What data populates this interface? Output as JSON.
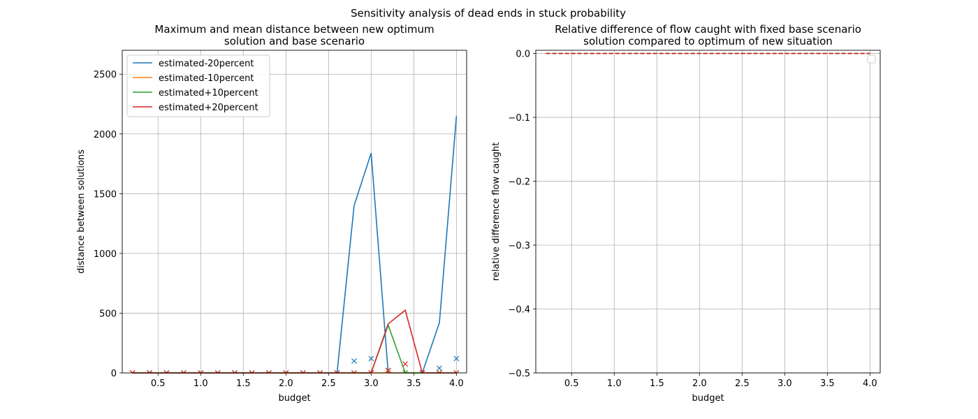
{
  "suptitle": "Sensitivity analysis of dead ends in stuck probability",
  "colors": {
    "estimated-20percent": "#1f77b4",
    "estimated-10percent": "#ff7f0e",
    "estimated+10percent": "#2ca02c",
    "estimated+20percent": "#d62728",
    "grid": "#b0b0b0"
  },
  "chart_data": [
    {
      "type": "line",
      "title_lines": [
        "Maximum and mean distance between new optimum",
        "solution and base scenario"
      ],
      "xlabel": "budget",
      "ylabel": "distance between solutions",
      "xlim": [
        0.08,
        4.12
      ],
      "ylim": [
        0,
        2700
      ],
      "xticks": [
        0.5,
        1.0,
        1.5,
        2.0,
        2.5,
        3.0,
        3.5,
        4.0
      ],
      "xtick_labels": [
        "0.5",
        "1.0",
        "1.5",
        "2.0",
        "2.5",
        "3.0",
        "3.5",
        "4.0"
      ],
      "yticks": [
        0,
        500,
        1000,
        1500,
        2000,
        2500
      ],
      "ytick_labels": [
        "0",
        "500",
        "1000",
        "1500",
        "2000",
        "2500"
      ],
      "grid": true,
      "legend_position": "upper-left",
      "x": [
        0.2,
        0.4,
        0.6,
        0.8,
        1.0,
        1.2,
        1.4,
        1.6,
        1.8,
        2.0,
        2.2,
        2.4,
        2.6,
        2.8,
        3.0,
        3.2,
        3.4,
        3.6,
        3.8,
        4.0
      ],
      "series": [
        {
          "name": "estimated-20percent",
          "color_key": "estimated-20percent",
          "max": [
            0,
            0,
            0,
            0,
            0,
            0,
            0,
            0,
            0,
            0,
            0,
            0,
            0,
            1400,
            1840,
            0,
            0,
            0,
            420,
            2150
          ],
          "mean": [
            0,
            0,
            0,
            0,
            0,
            0,
            0,
            0,
            0,
            0,
            0,
            0,
            0,
            100,
            120,
            20,
            0,
            0,
            40,
            120
          ]
        },
        {
          "name": "estimated-10percent",
          "color_key": "estimated-10percent",
          "max": [
            0,
            0,
            0,
            0,
            0,
            0,
            0,
            0,
            0,
            0,
            0,
            0,
            0,
            0,
            0,
            0,
            0,
            0,
            0,
            0
          ],
          "mean": [
            0,
            0,
            0,
            0,
            0,
            0,
            0,
            0,
            0,
            0,
            0,
            0,
            0,
            0,
            0,
            0,
            0,
            0,
            0,
            0
          ]
        },
        {
          "name": "estimated+10percent",
          "color_key": "estimated+10percent",
          "max": [
            0,
            0,
            0,
            0,
            0,
            0,
            0,
            0,
            0,
            0,
            0,
            0,
            0,
            0,
            0,
            400,
            0,
            0,
            0,
            0
          ],
          "mean": [
            0,
            0,
            0,
            0,
            0,
            0,
            0,
            0,
            0,
            0,
            0,
            0,
            0,
            0,
            0,
            20,
            0,
            0,
            0,
            0
          ]
        },
        {
          "name": "estimated+20percent",
          "color_key": "estimated+20percent",
          "max": [
            0,
            0,
            0,
            0,
            0,
            0,
            0,
            0,
            0,
            0,
            0,
            0,
            0,
            0,
            0,
            410,
            525,
            0,
            0,
            0
          ],
          "mean": [
            0,
            0,
            0,
            0,
            0,
            0,
            0,
            0,
            0,
            0,
            0,
            0,
            0,
            0,
            0,
            20,
            75,
            0,
            0,
            0
          ]
        }
      ]
    },
    {
      "type": "line",
      "title_lines": [
        "Relative difference of flow caught with fixed base scenario",
        "solution compared to optimum of new situation"
      ],
      "xlabel": "budget",
      "ylabel": "relative difference flow caught",
      "xlim": [
        0.08,
        4.12
      ],
      "ylim": [
        -0.5,
        0.005
      ],
      "xticks": [
        0.5,
        1.0,
        1.5,
        2.0,
        2.5,
        3.0,
        3.5,
        4.0
      ],
      "xtick_labels": [
        "0.5",
        "1.0",
        "1.5",
        "2.0",
        "2.5",
        "3.0",
        "3.5",
        "4.0"
      ],
      "yticks": [
        0.0,
        -0.1,
        -0.2,
        -0.3,
        -0.4,
        -0.5
      ],
      "ytick_labels": [
        "0.0",
        "−0.1",
        "−0.2",
        "−0.3",
        "−0.4",
        "−0.5"
      ],
      "grid": true,
      "legend_position": "upper-right",
      "legend_empty": true,
      "x": [
        0.2,
        0.4,
        0.6,
        0.8,
        1.0,
        1.2,
        1.4,
        1.6,
        1.8,
        2.0,
        2.2,
        2.4,
        2.6,
        2.8,
        3.0,
        3.2,
        3.4,
        3.6,
        3.8,
        4.0
      ],
      "series": [
        {
          "color_key": "estimated-20percent",
          "values": [
            0,
            0,
            0,
            0,
            0,
            0,
            0,
            0,
            0,
            0,
            0,
            0,
            0,
            0,
            0,
            0,
            0,
            0,
            0,
            0
          ]
        },
        {
          "color_key": "estimated-10percent",
          "values": [
            0,
            0,
            0,
            0,
            0,
            0,
            0,
            0,
            0,
            0,
            0,
            0,
            0,
            0,
            0,
            0,
            0,
            0,
            0,
            0
          ]
        },
        {
          "color_key": "estimated+10percent",
          "values": [
            0,
            0,
            0,
            0,
            0,
            0,
            0,
            0,
            0,
            0,
            0,
            0,
            0,
            0,
            0,
            0,
            0,
            0,
            0,
            0
          ]
        },
        {
          "color_key": "estimated+20percent",
          "values": [
            0,
            0,
            0,
            0,
            0,
            0,
            0,
            0,
            0,
            0,
            0,
            0,
            0,
            0,
            0,
            0,
            0,
            0,
            0,
            0
          ]
        }
      ]
    }
  ]
}
